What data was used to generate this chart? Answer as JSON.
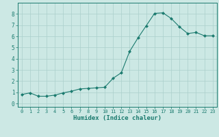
{
  "x": [
    0,
    1,
    2,
    3,
    4,
    5,
    6,
    7,
    8,
    9,
    10,
    11,
    12,
    13,
    14,
    15,
    16,
    17,
    18,
    19,
    20,
    21,
    22,
    23
  ],
  "y": [
    0.8,
    0.95,
    0.65,
    0.65,
    0.75,
    0.95,
    1.1,
    1.3,
    1.35,
    1.4,
    1.45,
    2.25,
    2.75,
    4.65,
    5.85,
    6.95,
    8.05,
    8.1,
    7.6,
    6.85,
    6.25,
    6.35,
    6.05,
    6.05
  ],
  "xlim": [
    -0.5,
    23.5
  ],
  "ylim": [
    -0.3,
    9.0
  ],
  "yticks": [
    0,
    1,
    2,
    3,
    4,
    5,
    6,
    7,
    8
  ],
  "xticks": [
    0,
    1,
    2,
    3,
    4,
    5,
    6,
    7,
    8,
    9,
    10,
    11,
    12,
    13,
    14,
    15,
    16,
    17,
    18,
    19,
    20,
    21,
    22,
    23
  ],
  "xlabel": "Humidex (Indice chaleur)",
  "line_color": "#1a7a6e",
  "marker": "D",
  "marker_size": 2.2,
  "bg_color": "#cce8e4",
  "grid_color": "#aacfcb",
  "tick_fontsize": 5.0,
  "xlabel_fontsize": 6.5
}
